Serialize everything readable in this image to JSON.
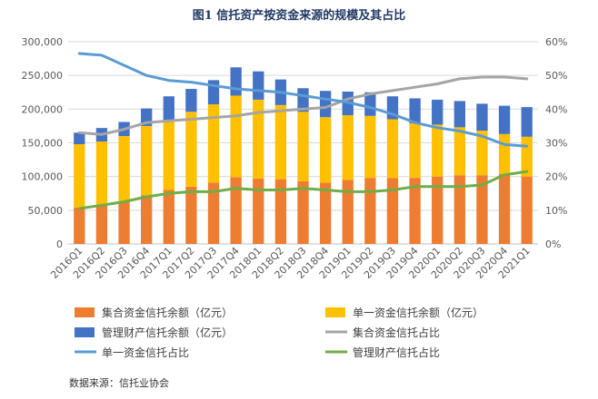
{
  "title": "图1   信托资产按资金来源的规模及其占比",
  "source": "数据来源：信托业协会",
  "chart_data": {
    "type": "bar",
    "stacked": true,
    "categories": [
      "2016Q1",
      "2016Q2",
      "2016Q3",
      "2016Q4",
      "2017Q1",
      "2017Q2",
      "2017Q3",
      "2017Q4",
      "2018Q1",
      "2018Q2",
      "2018Q3",
      "2018Q4",
      "2019Q1",
      "2019Q2",
      "2019Q3",
      "2019Q4",
      "2020Q1",
      "2020Q2",
      "2020Q3",
      "2020Q4",
      "2021Q1"
    ],
    "y_left": {
      "range": [
        0,
        300000
      ],
      "ticks": [
        "0",
        "50,000",
        "100,000",
        "150,000",
        "200,000",
        "250,000",
        "300,000"
      ]
    },
    "y_right": {
      "range": [
        0,
        60
      ],
      "ticks": [
        "0%",
        "10%",
        "20%",
        "30%",
        "40%",
        "50%",
        "60%"
      ]
    },
    "grid": true,
    "legend_position": "bottom",
    "bar_series": [
      {
        "name": "集合资金信托余额（亿元）",
        "color": "#ed7d31",
        "values": [
          54000,
          58000,
          63000,
          72000,
          80000,
          85000,
          91000,
          99000,
          97000,
          96000,
          93000,
          91000,
          95000,
          98000,
          98000,
          98000,
          100000,
          102000,
          102000,
          104000,
          100000
        ]
      },
      {
        "name": "单一资金信托余额（亿元）",
        "color": "#ffc000",
        "values": [
          94000,
          94000,
          97000,
          103000,
          104000,
          111000,
          116000,
          121000,
          117000,
          110000,
          103000,
          97000,
          96000,
          92000,
          87000,
          81000,
          77000,
          71000,
          66000,
          59000,
          59000
        ]
      },
      {
        "name": "管理财产信托余额（亿元）",
        "color": "#4472c4",
        "values": [
          17000,
          20000,
          21000,
          26000,
          35000,
          34000,
          36000,
          42000,
          42000,
          38000,
          35000,
          39000,
          35000,
          35000,
          34000,
          37000,
          37000,
          39000,
          40000,
          42000,
          44000
        ]
      }
    ],
    "line_series": [
      {
        "name": "集合资金信托占比",
        "color": "#a5a5a5",
        "values": [
          33,
          32.5,
          34,
          36,
          36.5,
          37,
          37.5,
          38,
          39,
          39.5,
          40,
          40.5,
          43,
          44.5,
          45.5,
          46.5,
          47.5,
          49,
          49.5,
          49.5,
          49
        ]
      },
      {
        "name": "单一资金信托占比",
        "color": "#5b9bd5",
        "values": [
          56.5,
          56,
          53,
          50,
          48.5,
          48,
          47,
          46,
          45.5,
          45,
          44,
          43,
          42,
          40.5,
          38.5,
          36,
          34.5,
          33.5,
          32,
          29.5,
          29
        ]
      },
      {
        "name": "管理财产信托占比",
        "color": "#70ad47",
        "values": [
          10.5,
          11.5,
          12.5,
          14,
          15,
          15.5,
          15.5,
          16.5,
          16,
          16,
          16.5,
          16,
          15.5,
          15.5,
          16,
          17,
          17,
          17,
          17.5,
          20.5,
          21.5
        ]
      }
    ]
  }
}
